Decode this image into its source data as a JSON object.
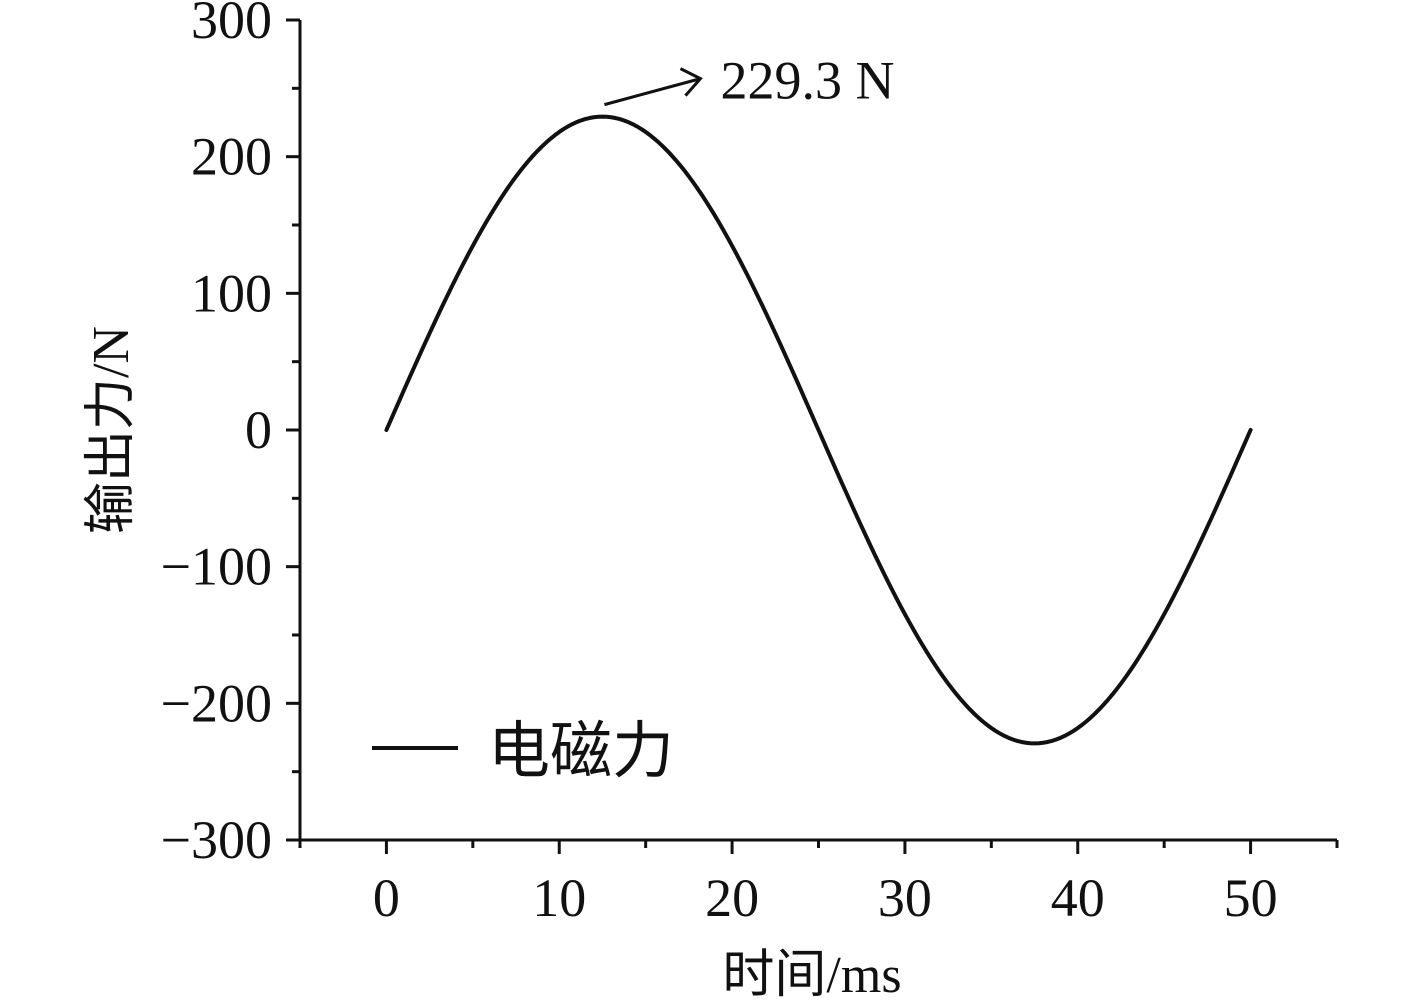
{
  "chart_data": {
    "type": "line",
    "xlabel": "时间/ms",
    "ylabel": "输出力/N",
    "xlim": [
      -5,
      55
    ],
    "ylim": [
      -300,
      300
    ],
    "x_ticks": [
      0,
      10,
      20,
      30,
      40,
      50
    ],
    "x_tick_labels": [
      "0",
      "10",
      "20",
      "30",
      "40",
      "50"
    ],
    "y_ticks": [
      300,
      200,
      100,
      0,
      -100,
      -200,
      -300
    ],
    "y_tick_labels": [
      "300",
      "200",
      "100",
      "0",
      "−100",
      "−200",
      "−300"
    ],
    "series": [
      {
        "name": "电磁力",
        "color": "#111111",
        "amplitude": 229.3,
        "period_ms": 50,
        "x": [
          0,
          2.5,
          5,
          7.5,
          10,
          12.5,
          15,
          17.5,
          20,
          22.5,
          25,
          27.5,
          30,
          32.5,
          35,
          37.5,
          40,
          42.5,
          45,
          47.5,
          50
        ],
        "y": [
          0,
          70.9,
          134.8,
          185.5,
          218.1,
          229.3,
          218.1,
          185.5,
          134.8,
          70.9,
          0,
          -70.9,
          -134.8,
          -185.5,
          -218.1,
          -229.3,
          -218.1,
          -185.5,
          -134.8,
          -70.9,
          0
        ]
      }
    ],
    "annotations": [
      {
        "text": "229.3 N",
        "x": 12.5,
        "y": 229.3
      }
    ],
    "legend": {
      "position": "bottom-left",
      "label": "电磁力"
    },
    "grid": false
  }
}
